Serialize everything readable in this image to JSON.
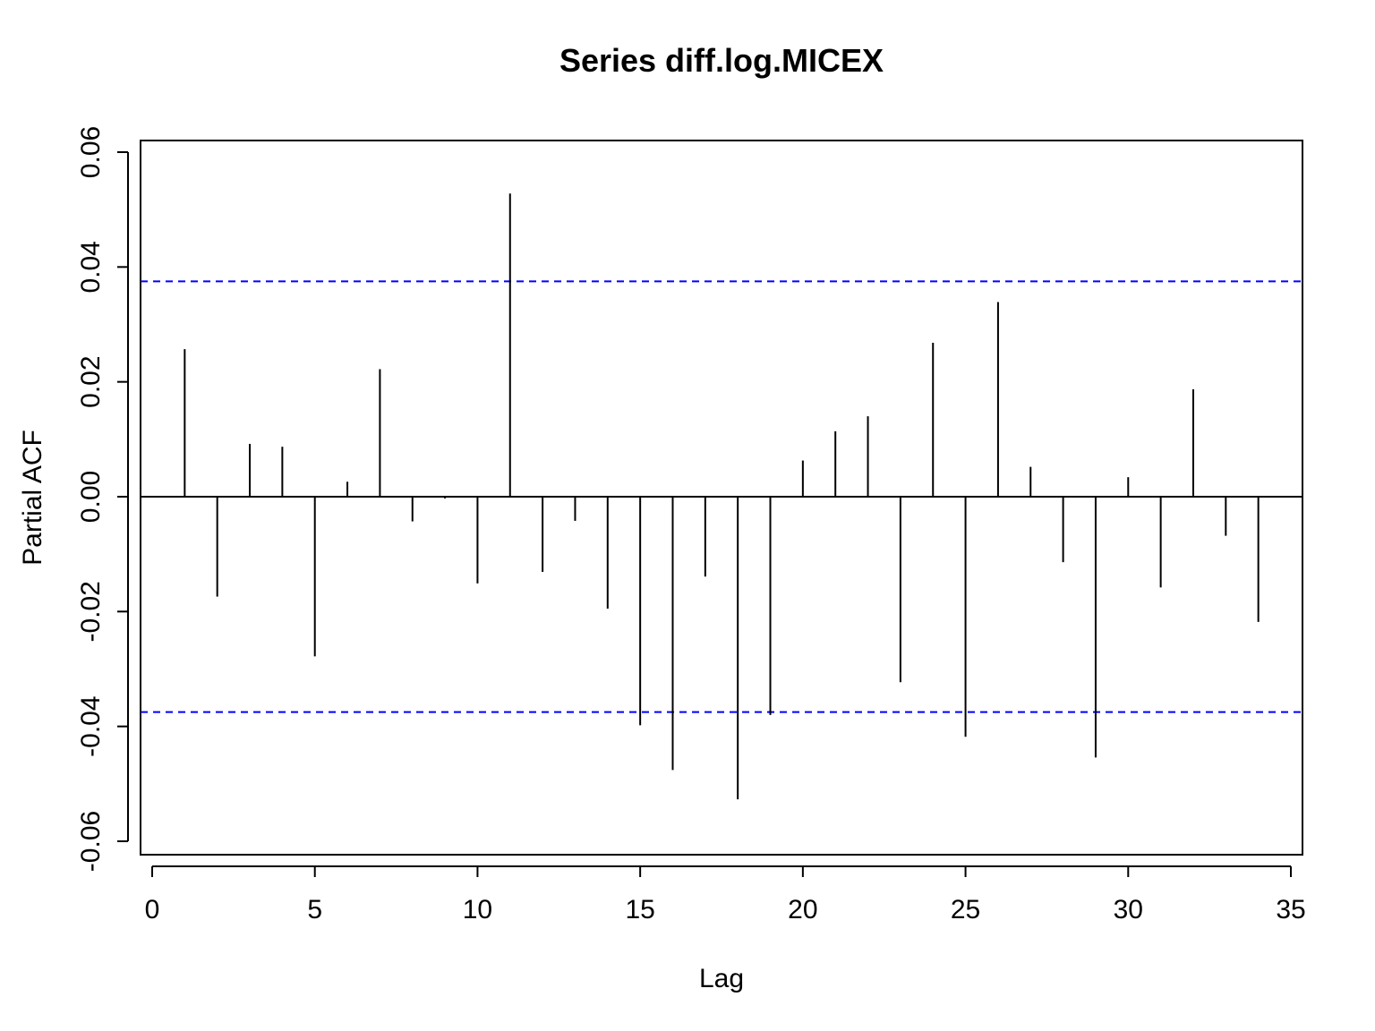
{
  "chart_data": {
    "type": "bar",
    "subtype": "partial-acf-spike",
    "title": "Series  diff.log.MICEX",
    "xlabel": "Lag",
    "ylabel": "Partial ACF",
    "xlim": [
      0,
      35
    ],
    "ylim": [
      -0.06,
      0.06
    ],
    "x_ticks": [
      0,
      5,
      10,
      15,
      20,
      25,
      30,
      35
    ],
    "y_ticks": [
      -0.06,
      -0.04,
      -0.02,
      0.0,
      0.02,
      0.04,
      0.06
    ],
    "y_tick_labels": [
      "-0.06",
      "-0.04",
      "-0.02",
      "0.00",
      "0.02",
      "0.04",
      "0.06"
    ],
    "confidence_bound": 0.0375,
    "bound_color": "#0000ff",
    "bar_color": "#000000",
    "lags": [
      1,
      2,
      3,
      4,
      5,
      6,
      7,
      8,
      9,
      10,
      11,
      12,
      13,
      14,
      15,
      16,
      17,
      18,
      19,
      20,
      21,
      22,
      23,
      24,
      25,
      26,
      27,
      28,
      29,
      30,
      31,
      32,
      33,
      34
    ],
    "values": [
      0.0257,
      -0.0174,
      0.0092,
      0.0087,
      -0.0278,
      0.0026,
      0.0222,
      -0.0043,
      -0.0003,
      -0.0151,
      0.0528,
      -0.0131,
      -0.0042,
      -0.0195,
      -0.0398,
      -0.0476,
      -0.0139,
      -0.0527,
      -0.038,
      0.0063,
      0.0114,
      0.014,
      -0.0323,
      0.0268,
      -0.0418,
      0.0339,
      0.0052,
      -0.0114,
      -0.0454,
      0.0034,
      -0.0158,
      0.0187,
      -0.0068,
      -0.0218
    ],
    "grid": false,
    "legend": "none"
  }
}
